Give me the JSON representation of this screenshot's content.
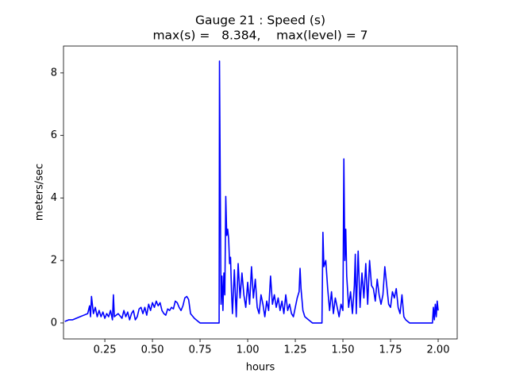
{
  "chart_data": {
    "type": "line",
    "title": "Gauge 21 : Speed (s)",
    "subtitle": "max(s) =   8.384,    max(level) = 7",
    "x_label": "hours",
    "y_label": "meters/sec",
    "color": "#0000ff",
    "x": [
      0.04,
      0.06,
      0.08,
      0.1,
      0.12,
      0.14,
      0.16,
      0.17,
      0.175,
      0.18,
      0.19,
      0.2,
      0.21,
      0.22,
      0.23,
      0.24,
      0.25,
      0.26,
      0.27,
      0.28,
      0.29,
      0.295,
      0.3,
      0.32,
      0.34,
      0.35,
      0.36,
      0.37,
      0.38,
      0.39,
      0.4,
      0.41,
      0.42,
      0.43,
      0.44,
      0.45,
      0.46,
      0.47,
      0.48,
      0.49,
      0.5,
      0.51,
      0.52,
      0.53,
      0.54,
      0.55,
      0.56,
      0.57,
      0.58,
      0.59,
      0.6,
      0.61,
      0.62,
      0.63,
      0.64,
      0.65,
      0.66,
      0.67,
      0.68,
      0.69,
      0.7,
      0.72,
      0.74,
      0.75,
      0.8,
      0.85,
      0.852,
      0.86,
      0.865,
      0.87,
      0.875,
      0.88,
      0.885,
      0.89,
      0.895,
      0.9,
      0.905,
      0.91,
      0.915,
      0.92,
      0.93,
      0.94,
      0.95,
      0.96,
      0.97,
      0.98,
      0.99,
      1.0,
      1.01,
      1.02,
      1.03,
      1.04,
      1.05,
      1.06,
      1.07,
      1.08,
      1.09,
      1.1,
      1.11,
      1.12,
      1.13,
      1.14,
      1.15,
      1.16,
      1.17,
      1.18,
      1.19,
      1.2,
      1.21,
      1.22,
      1.23,
      1.24,
      1.25,
      1.26,
      1.27,
      1.275,
      1.28,
      1.29,
      1.3,
      1.32,
      1.34,
      1.39,
      1.395,
      1.4,
      1.41,
      1.42,
      1.43,
      1.44,
      1.45,
      1.46,
      1.47,
      1.48,
      1.49,
      1.5,
      1.505,
      1.51,
      1.515,
      1.52,
      1.53,
      1.54,
      1.55,
      1.56,
      1.565,
      1.57,
      1.58,
      1.59,
      1.6,
      1.61,
      1.62,
      1.63,
      1.64,
      1.65,
      1.66,
      1.67,
      1.68,
      1.69,
      1.7,
      1.71,
      1.72,
      1.73,
      1.74,
      1.75,
      1.76,
      1.77,
      1.78,
      1.79,
      1.8,
      1.81,
      1.82,
      1.83,
      1.85,
      1.97,
      1.975,
      1.98,
      1.985,
      1.99,
      1.995,
      2.0
    ],
    "values": [
      0.05,
      0.1,
      0.1,
      0.15,
      0.2,
      0.25,
      0.3,
      0.55,
      0.2,
      0.85,
      0.3,
      0.5,
      0.2,
      0.4,
      0.2,
      0.35,
      0.15,
      0.3,
      0.2,
      0.4,
      0.1,
      0.9,
      0.2,
      0.3,
      0.15,
      0.4,
      0.2,
      0.35,
      0.1,
      0.3,
      0.4,
      0.1,
      0.2,
      0.45,
      0.5,
      0.3,
      0.5,
      0.25,
      0.6,
      0.4,
      0.65,
      0.5,
      0.7,
      0.55,
      0.65,
      0.4,
      0.3,
      0.25,
      0.45,
      0.4,
      0.5,
      0.45,
      0.7,
      0.65,
      0.5,
      0.4,
      0.55,
      0.8,
      0.85,
      0.75,
      0.3,
      0.15,
      0.05,
      0.0,
      0.0,
      0.0,
      8.38,
      0.6,
      1.5,
      0.4,
      1.6,
      0.9,
      4.05,
      2.8,
      3.0,
      2.7,
      1.9,
      2.1,
      1.0,
      0.3,
      1.7,
      0.2,
      1.9,
      0.8,
      1.6,
      0.9,
      0.5,
      1.3,
      0.6,
      1.8,
      0.8,
      1.4,
      0.5,
      0.3,
      0.9,
      0.6,
      0.2,
      0.7,
      0.4,
      1.5,
      0.6,
      0.9,
      0.5,
      0.8,
      0.4,
      0.7,
      0.3,
      0.9,
      0.4,
      0.6,
      0.3,
      0.2,
      0.5,
      0.8,
      1.0,
      1.75,
      1.1,
      0.4,
      0.2,
      0.1,
      0.0,
      0.0,
      2.9,
      1.8,
      2.0,
      1.1,
      0.4,
      1.0,
      0.3,
      0.8,
      0.5,
      0.2,
      0.6,
      0.4,
      5.25,
      2.0,
      3.0,
      1.5,
      0.5,
      1.0,
      0.3,
      1.2,
      2.2,
      0.3,
      2.3,
      0.5,
      1.6,
      0.8,
      1.9,
      0.6,
      2.0,
      1.2,
      1.1,
      0.7,
      1.4,
      0.9,
      0.6,
      0.9,
      1.8,
      1.2,
      0.6,
      0.5,
      1.0,
      0.8,
      1.1,
      0.5,
      0.3,
      0.9,
      0.2,
      0.1,
      0.0,
      0.0,
      0.5,
      0.1,
      0.6,
      0.2,
      0.7,
      0.4
    ],
    "xlim": [
      0.033,
      2.1
    ],
    "ylim": [
      -0.51,
      8.86
    ],
    "xticks": [
      0.25,
      {
        "value": 0.5,
        "label": "0.50"
      },
      0.75,
      {
        "value": 1,
        "label": "1.00"
      },
      1.25,
      {
        "value": 1.5,
        "label": "1.50"
      },
      1.75,
      {
        "value": 2,
        "label": "2.00"
      }
    ],
    "yticks": [
      0,
      2,
      4,
      6,
      8
    ],
    "grid": false
  }
}
